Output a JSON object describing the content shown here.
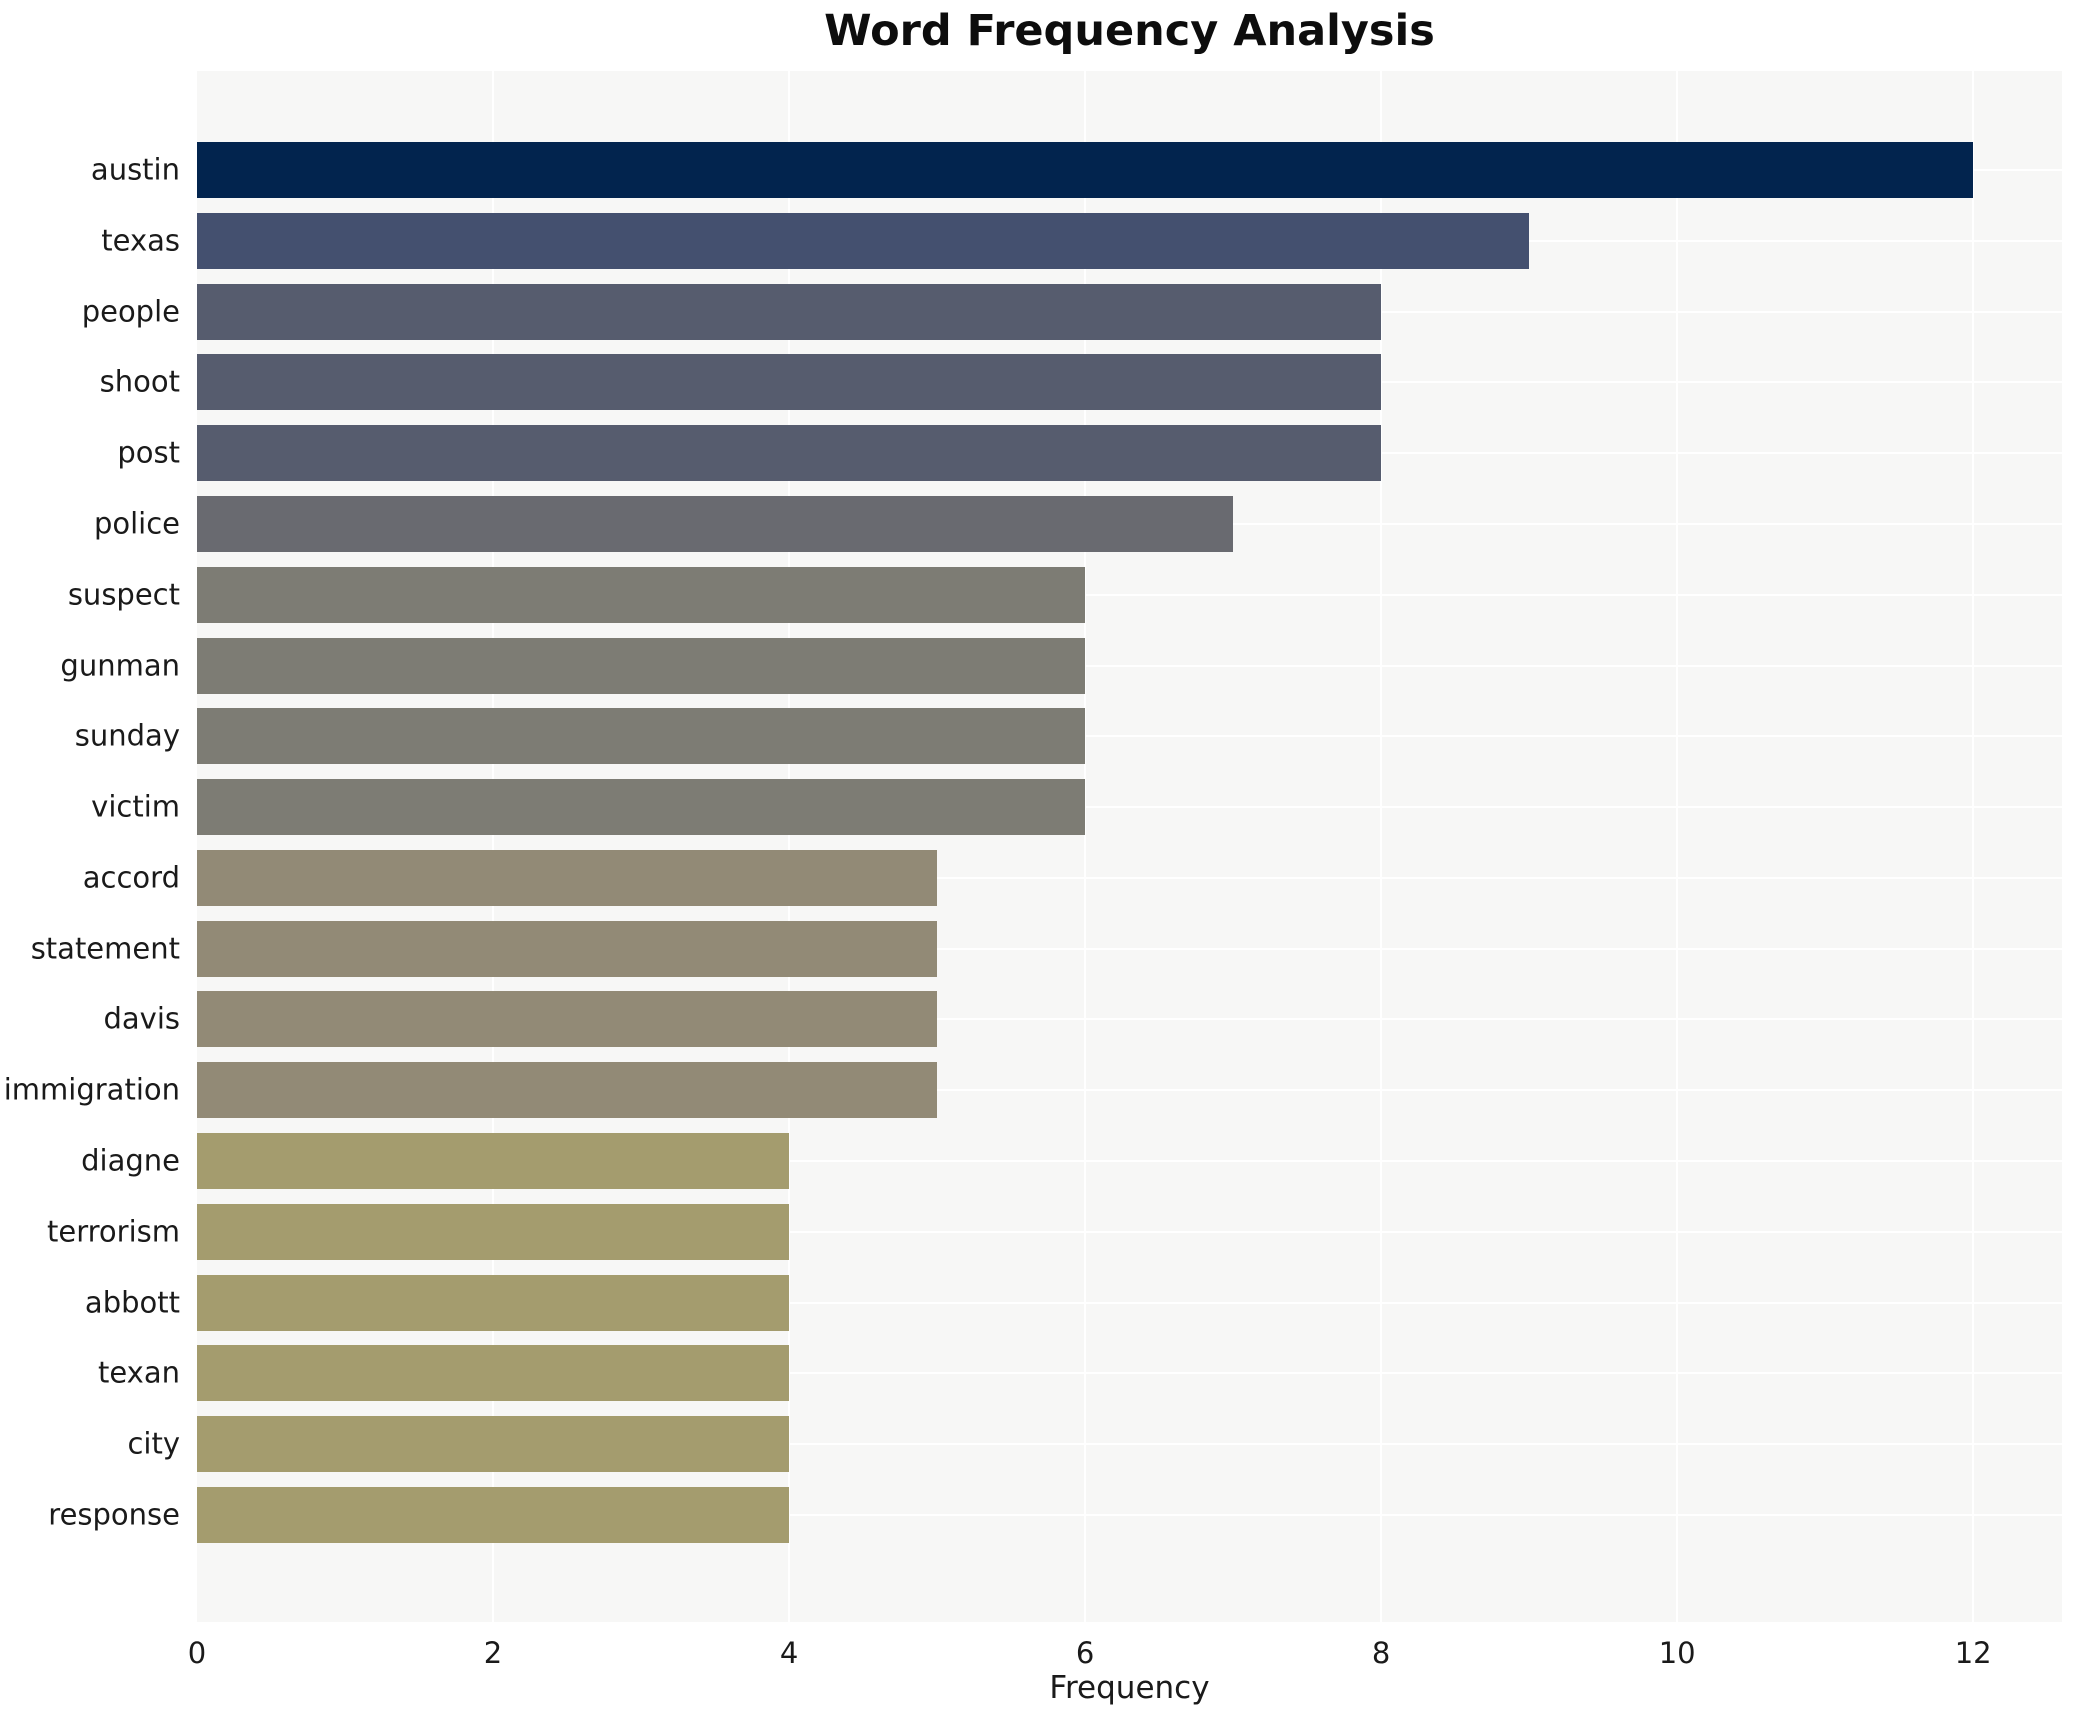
{
  "chart_data": {
    "type": "bar",
    "orientation": "horizontal",
    "title": "Word Frequency Analysis",
    "xlabel": "Frequency",
    "ylabel": "",
    "categories": [
      "austin",
      "texas",
      "people",
      "shoot",
      "post",
      "police",
      "suspect",
      "gunman",
      "sunday",
      "victim",
      "accord",
      "statement",
      "davis",
      "immigration",
      "diagne",
      "terrorism",
      "abbott",
      "texan",
      "city",
      "response"
    ],
    "values": [
      12,
      9,
      8,
      8,
      8,
      7,
      6,
      6,
      6,
      6,
      5,
      5,
      5,
      5,
      4,
      4,
      4,
      4,
      4,
      4
    ],
    "bar_colors": [
      "#02244e",
      "#44506f",
      "#565c6e",
      "#565c6e",
      "#565c6e",
      "#696a70",
      "#7d7c74",
      "#7d7c74",
      "#7d7c74",
      "#7d7c74",
      "#928a76",
      "#928a76",
      "#928a76",
      "#928a76",
      "#a49c6e",
      "#a49c6e",
      "#a49c6e",
      "#a49c6e",
      "#a49c6e",
      "#a49c6e"
    ],
    "xlim": [
      0,
      12.6
    ],
    "xticks": [
      0,
      2,
      4,
      6,
      8,
      10,
      12
    ],
    "grid": true,
    "legend": false,
    "colors": {
      "figure_background": "#ffffff",
      "plot_background": "#f7f7f6",
      "gridline": "#ffffff",
      "text": "#1a1a1a"
    }
  }
}
